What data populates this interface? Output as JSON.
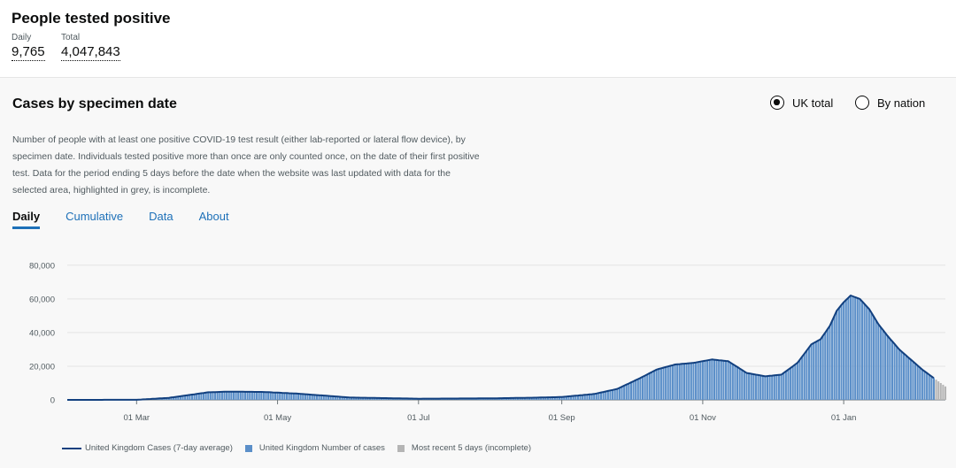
{
  "header": {
    "title": "People tested positive",
    "daily": {
      "label": "Daily",
      "value": "9,765"
    },
    "total": {
      "label": "Total",
      "value": "4,047,843"
    }
  },
  "card": {
    "title": "Cases by specimen date",
    "radio": [
      {
        "label": "UK total",
        "selected": true
      },
      {
        "label": "By nation",
        "selected": false
      }
    ],
    "description": "Number of people with at least one positive COVID-19 test result (either lab-reported or lateral flow device), by specimen date. Individuals tested positive more than once are only counted once, on the date of their first positive test. Data for the period ending 5 days before the date when the website was last updated with data for the selected area, highlighted in grey, is incomplete.",
    "tabs": [
      {
        "label": "Daily",
        "active": true
      },
      {
        "label": "Cumulative",
        "active": false
      },
      {
        "label": "Data",
        "active": false
      },
      {
        "label": "About",
        "active": false
      }
    ]
  },
  "colors": {
    "bar": "#5b8fc9",
    "line": "#12407f",
    "incomplete": "#b5b5b5",
    "grid": "#e4e4e4",
    "axis": "#6f777b"
  },
  "chart_data": {
    "type": "bar",
    "x_range": [
      "2020-01-31",
      "2021-02-14"
    ],
    "ylim": [
      0,
      82000
    ],
    "y_ticks": [
      "0",
      "20,000",
      "40,000",
      "60,000",
      "80,000"
    ],
    "y_tick_values": [
      0,
      20000,
      40000,
      60000,
      80000
    ],
    "x_ticks": [
      "01 Mar",
      "01 May",
      "01 Jul",
      "01 Sep",
      "01 Nov",
      "01 Jan"
    ],
    "x_tick_dates": [
      "2020-03-01",
      "2020-05-01",
      "2020-07-01",
      "2020-09-01",
      "2020-11-01",
      "2021-01-01"
    ],
    "incomplete_from": "2021-02-10",
    "series": [
      {
        "name": "United Kingdom Number of cases",
        "kind": "bar",
        "anchor_dates": [
          "2020-01-31",
          "2020-03-01",
          "2020-03-15",
          "2020-04-01",
          "2020-04-10",
          "2020-04-25",
          "2020-05-10",
          "2020-06-01",
          "2020-07-01",
          "2020-08-01",
          "2020-08-20",
          "2020-09-01",
          "2020-09-15",
          "2020-09-25",
          "2020-10-05",
          "2020-10-12",
          "2020-10-20",
          "2020-10-28",
          "2020-11-05",
          "2020-11-12",
          "2020-11-20",
          "2020-11-28",
          "2020-12-05",
          "2020-12-12",
          "2020-12-18",
          "2020-12-22",
          "2020-12-26",
          "2020-12-29",
          "2021-01-01",
          "2021-01-04",
          "2021-01-08",
          "2021-01-12",
          "2021-01-16",
          "2021-01-20",
          "2021-01-25",
          "2021-01-30",
          "2021-02-04",
          "2021-02-09",
          "2021-02-14"
        ],
        "anchor_values": [
          0,
          50,
          1200,
          4500,
          4900,
          4700,
          3700,
          1400,
          700,
          900,
          1300,
          1700,
          3500,
          6500,
          13000,
          18000,
          21000,
          22000,
          24000,
          23000,
          16000,
          14000,
          15000,
          22000,
          33000,
          36000,
          44000,
          53000,
          58000,
          62000,
          60000,
          54000,
          45000,
          38000,
          30000,
          24000,
          18000,
          13000,
          8000
        ]
      },
      {
        "name": "United Kingdom Cases (7-day average)",
        "kind": "line",
        "anchor_dates": [
          "2020-01-31",
          "2020-03-01",
          "2020-03-15",
          "2020-04-01",
          "2020-04-10",
          "2020-04-25",
          "2020-05-10",
          "2020-06-01",
          "2020-07-01",
          "2020-08-01",
          "2020-08-20",
          "2020-09-01",
          "2020-09-15",
          "2020-09-25",
          "2020-10-05",
          "2020-10-12",
          "2020-10-20",
          "2020-10-28",
          "2020-11-05",
          "2020-11-12",
          "2020-11-20",
          "2020-11-28",
          "2020-12-05",
          "2020-12-12",
          "2020-12-18",
          "2020-12-22",
          "2020-12-26",
          "2020-12-29",
          "2021-01-01",
          "2021-01-04",
          "2021-01-08",
          "2021-01-12",
          "2021-01-16",
          "2021-01-20",
          "2021-01-25",
          "2021-01-30",
          "2021-02-04",
          "2021-02-09"
        ],
        "anchor_values": [
          0,
          50,
          1200,
          4500,
          4900,
          4700,
          3700,
          1400,
          700,
          900,
          1300,
          1700,
          3500,
          6500,
          13000,
          18000,
          21000,
          22000,
          24000,
          23000,
          16000,
          14000,
          15000,
          22000,
          33000,
          36000,
          44000,
          53000,
          58000,
          62000,
          60000,
          54000,
          45000,
          38000,
          30000,
          24000,
          18000,
          13000
        ]
      },
      {
        "name": "Most recent 5 days (incomplete)",
        "kind": "bar"
      }
    ],
    "legend": [
      "United Kingdom Cases (7-day average)",
      "United Kingdom Number of cases",
      "Most recent 5 days (incomplete)"
    ],
    "legend_position": "bottom-left",
    "grid": true
  }
}
